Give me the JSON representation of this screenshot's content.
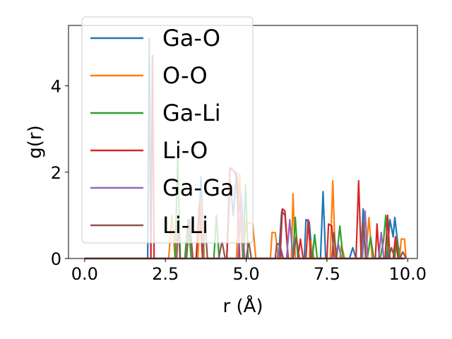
{
  "chart_data": {
    "type": "line",
    "xlabel": "r (Å)",
    "ylabel": "g(r)",
    "xlim": [
      -0.5,
      10.3
    ],
    "ylim": [
      0,
      5.4
    ],
    "xticks": [
      0.0,
      2.5,
      5.0,
      7.5,
      10.0
    ],
    "xtick_labels": [
      "0.0",
      "2.5",
      "5.0",
      "7.5",
      "10.0"
    ],
    "yticks": [
      0,
      2,
      4
    ],
    "ytick_labels": [
      "0",
      "2",
      "4"
    ],
    "legend_position": "upper-left",
    "grid": false,
    "series": [
      {
        "name": "Ga-O",
        "color": "#1f77b4",
        "points": [
          [
            0,
            0
          ],
          [
            1.95,
            0
          ],
          [
            2.0,
            5.1
          ],
          [
            2.05,
            0
          ],
          [
            3.5,
            0
          ],
          [
            3.6,
            1.9
          ],
          [
            3.7,
            0
          ],
          [
            4.4,
            0
          ],
          [
            4.5,
            1.8
          ],
          [
            4.6,
            1.0
          ],
          [
            4.7,
            2.0
          ],
          [
            4.8,
            1.2
          ],
          [
            4.9,
            0
          ],
          [
            6.0,
            0
          ],
          [
            6.1,
            1.1
          ],
          [
            6.2,
            1.0
          ],
          [
            6.3,
            0
          ],
          [
            6.8,
            0
          ],
          [
            6.85,
            0.9
          ],
          [
            6.95,
            0.85
          ],
          [
            7.05,
            0
          ],
          [
            7.3,
            0
          ],
          [
            7.38,
            1.55
          ],
          [
            7.46,
            0
          ],
          [
            8.2,
            0
          ],
          [
            8.3,
            0.25
          ],
          [
            8.4,
            0
          ],
          [
            8.55,
            0
          ],
          [
            8.62,
            1.15
          ],
          [
            8.7,
            0
          ],
          [
            9.35,
            0
          ],
          [
            9.45,
            0.9
          ],
          [
            9.55,
            0.5
          ],
          [
            9.6,
            0.95
          ],
          [
            9.7,
            0.3
          ],
          [
            9.8,
            0
          ],
          [
            9.9,
            0
          ]
        ]
      },
      {
        "name": "O-O",
        "color": "#ff7f0e",
        "points": [
          [
            0,
            0
          ],
          [
            2.6,
            0
          ],
          [
            2.7,
            1.0
          ],
          [
            2.8,
            0
          ],
          [
            3.5,
            0
          ],
          [
            3.6,
            1.3
          ],
          [
            3.7,
            0
          ],
          [
            4.7,
            0
          ],
          [
            4.8,
            1.95
          ],
          [
            4.9,
            0
          ],
          [
            5.0,
            0.85
          ],
          [
            5.2,
            0.8
          ],
          [
            5.3,
            0
          ],
          [
            5.75,
            0
          ],
          [
            5.8,
            0.6
          ],
          [
            5.9,
            0.6
          ],
          [
            6.0,
            0
          ],
          [
            6.4,
            0
          ],
          [
            6.45,
            1.5
          ],
          [
            6.52,
            0
          ],
          [
            6.95,
            0
          ],
          [
            7.0,
            0.4
          ],
          [
            7.1,
            0
          ],
          [
            7.6,
            0
          ],
          [
            7.68,
            1.8
          ],
          [
            7.76,
            0
          ],
          [
            7.9,
            0
          ],
          [
            7.95,
            0.3
          ],
          [
            8.05,
            0
          ],
          [
            8.7,
            0
          ],
          [
            8.8,
            0.95
          ],
          [
            8.9,
            0
          ],
          [
            9.75,
            0
          ],
          [
            9.8,
            0.45
          ],
          [
            9.9,
            0.45
          ],
          [
            9.95,
            0
          ]
        ]
      },
      {
        "name": "Ga-Li",
        "color": "#2ca02c",
        "points": [
          [
            0,
            0
          ],
          [
            2.8,
            0
          ],
          [
            2.88,
            2.35
          ],
          [
            2.96,
            0
          ],
          [
            3.1,
            0
          ],
          [
            3.2,
            0.9
          ],
          [
            3.3,
            0
          ],
          [
            4.0,
            0
          ],
          [
            4.08,
            1.0
          ],
          [
            4.16,
            0
          ],
          [
            4.9,
            0
          ],
          [
            4.98,
            1.7
          ],
          [
            5.06,
            0
          ],
          [
            6.45,
            0
          ],
          [
            6.52,
            0.95
          ],
          [
            6.6,
            0
          ],
          [
            7.05,
            0
          ],
          [
            7.12,
            0.55
          ],
          [
            7.2,
            0
          ],
          [
            7.8,
            0
          ],
          [
            7.9,
            0.75
          ],
          [
            8.0,
            0
          ],
          [
            8.75,
            0
          ],
          [
            8.85,
            0.5
          ],
          [
            8.95,
            0
          ],
          [
            9.15,
            0
          ],
          [
            9.25,
            0.4
          ],
          [
            9.32,
            1.0
          ],
          [
            9.4,
            0
          ],
          [
            9.6,
            0
          ],
          [
            9.65,
            0.5
          ],
          [
            9.75,
            0
          ],
          [
            9.9,
            0
          ]
        ]
      },
      {
        "name": "Li-O",
        "color": "#d62728",
        "points": [
          [
            0,
            0
          ],
          [
            2.05,
            0
          ],
          [
            2.1,
            4.7
          ],
          [
            2.15,
            0
          ],
          [
            3.45,
            0
          ],
          [
            3.55,
            1.25
          ],
          [
            3.65,
            0
          ],
          [
            4.4,
            0
          ],
          [
            4.5,
            2.1
          ],
          [
            4.6,
            2.05
          ],
          [
            4.7,
            1.9
          ],
          [
            4.8,
            0
          ],
          [
            6.05,
            0
          ],
          [
            6.12,
            1.15
          ],
          [
            6.2,
            1.1
          ],
          [
            6.3,
            0
          ],
          [
            6.6,
            0
          ],
          [
            6.68,
            0.45
          ],
          [
            6.76,
            0
          ],
          [
            6.85,
            0
          ],
          [
            6.92,
            0.9
          ],
          [
            7.0,
            0
          ],
          [
            7.5,
            0
          ],
          [
            7.55,
            0.8
          ],
          [
            7.65,
            0.75
          ],
          [
            7.72,
            0
          ],
          [
            8.4,
            0
          ],
          [
            8.48,
            1.8
          ],
          [
            8.56,
            0
          ],
          [
            9.0,
            0
          ],
          [
            9.05,
            0.8
          ],
          [
            9.12,
            0
          ],
          [
            9.3,
            0
          ],
          [
            9.38,
            1.0
          ],
          [
            9.45,
            0
          ],
          [
            9.55,
            0
          ],
          [
            9.62,
            0.5
          ],
          [
            9.7,
            0
          ],
          [
            9.9,
            0
          ]
        ]
      },
      {
        "name": "Ga-Ga",
        "color": "#9467bd",
        "points": [
          [
            0,
            0
          ],
          [
            4.75,
            0
          ],
          [
            4.85,
            1.5
          ],
          [
            4.95,
            0
          ],
          [
            5.95,
            0
          ],
          [
            6.05,
            0.3
          ],
          [
            6.15,
            0
          ],
          [
            6.25,
            0
          ],
          [
            6.35,
            0.9
          ],
          [
            6.45,
            0
          ],
          [
            7.75,
            0
          ],
          [
            7.85,
            0.35
          ],
          [
            7.95,
            0
          ],
          [
            8.6,
            0
          ],
          [
            8.68,
            1.1
          ],
          [
            8.76,
            0
          ],
          [
            9.1,
            0
          ],
          [
            9.18,
            0.6
          ],
          [
            9.26,
            0
          ],
          [
            9.8,
            0
          ]
        ]
      },
      {
        "name": "Li-Li",
        "color": "#8c564b",
        "points": [
          [
            0,
            0
          ],
          [
            2.85,
            0
          ],
          [
            2.9,
            1.0
          ],
          [
            2.95,
            0
          ],
          [
            3.15,
            0
          ],
          [
            3.25,
            0.9
          ],
          [
            3.35,
            0
          ],
          [
            3.65,
            0
          ],
          [
            3.72,
            0.95
          ],
          [
            3.8,
            0
          ],
          [
            4.15,
            0
          ],
          [
            4.25,
            0.4
          ],
          [
            4.35,
            0
          ],
          [
            5.0,
            0
          ],
          [
            5.08,
            0.4
          ],
          [
            5.16,
            0
          ],
          [
            5.9,
            0
          ],
          [
            5.95,
            0.35
          ],
          [
            6.05,
            0.3
          ],
          [
            6.12,
            0
          ],
          [
            6.45,
            0
          ],
          [
            6.55,
            0.5
          ],
          [
            6.65,
            0
          ],
          [
            7.65,
            0
          ],
          [
            7.72,
            0.6
          ],
          [
            7.8,
            0
          ],
          [
            8.55,
            0
          ],
          [
            8.62,
            0.85
          ],
          [
            8.7,
            0
          ],
          [
            9.4,
            0
          ],
          [
            9.5,
            0.25
          ],
          [
            9.6,
            0
          ],
          [
            9.75,
            0
          ],
          [
            9.85,
            0.15
          ],
          [
            9.95,
            0
          ]
        ]
      }
    ]
  }
}
